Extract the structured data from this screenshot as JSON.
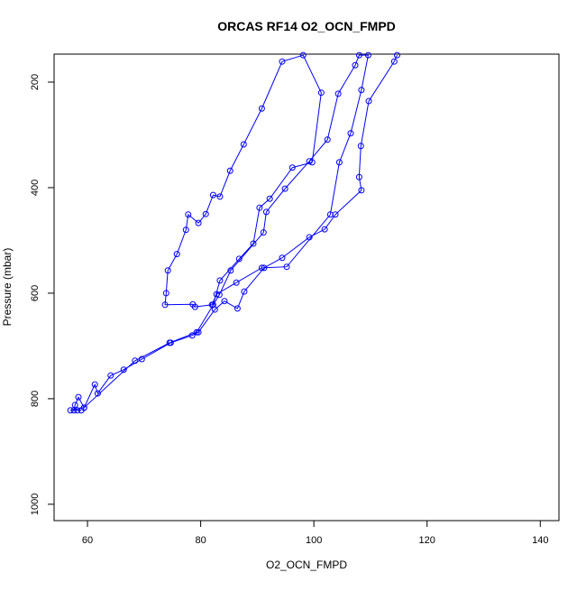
{
  "chart_data": {
    "type": "line",
    "title": "ORCAS RF14 O2_OCN_FMPD",
    "x_label": "O2_OCN_FMPD",
    "y_label": "Pressure (mbar)",
    "color": "#0000ff",
    "markers": true,
    "x": [
      114.7,
      114.2,
      109.7,
      108.3,
      108.0,
      108.4,
      103.8,
      101.9,
      99.2,
      94.4,
      91.2,
      87.7,
      86.5,
      84.2,
      82.5,
      79.6,
      78.5,
      74.7,
      69.6,
      66.4,
      64.1,
      61.8,
      61.3,
      59.4,
      58.4,
      57.8,
      57.6,
      58.2,
      58.9,
      57.0,
      59.4,
      68.4,
      74.5,
      79.3,
      83.3,
      85.3,
      91.1,
      91.6,
      94.9,
      99.2,
      102.4,
      104.3,
      107.3,
      108.0,
      109.6,
      108.4,
      106.5,
      104.5,
      102.9,
      95.2,
      90.8,
      86.3,
      82.8,
      82.0,
      79.0,
      78.6,
      73.7,
      73.9,
      74.2,
      75.8,
      77.4,
      77.8,
      79.6,
      80.9,
      82.2,
      83.4,
      85.2,
      87.6,
      90.8,
      94.4,
      98.1,
      101.3,
      99.7,
      96.2,
      92.2,
      90.4,
      89.3,
      86.8,
      83.4,
      82.2
    ],
    "values": [
      149,
      161,
      236,
      321,
      380,
      405,
      451,
      479,
      494,
      533,
      552,
      597,
      629,
      615,
      631,
      674,
      680,
      694,
      725,
      745,
      756,
      790,
      773,
      817,
      797,
      812,
      822,
      822,
      822,
      822,
      817,
      728,
      694,
      674,
      603,
      557,
      485,
      446,
      402,
      350,
      309,
      222,
      168,
      149,
      149,
      215,
      297,
      352,
      451,
      550,
      552,
      580,
      602,
      622,
      626,
      621,
      622,
      600,
      557,
      526,
      480,
      451,
      467,
      450,
      414,
      417,
      368,
      318,
      250,
      161,
      149,
      220,
      352,
      362,
      421,
      438,
      506,
      535,
      576,
      622
    ],
    "xlim": [
      54.1,
      143.3
    ],
    "xticks": [
      60,
      80,
      100,
      120,
      140
    ],
    "ylim": [
      1031,
      147
    ],
    "yticks": [
      200,
      400,
      600,
      800,
      1000
    ]
  }
}
